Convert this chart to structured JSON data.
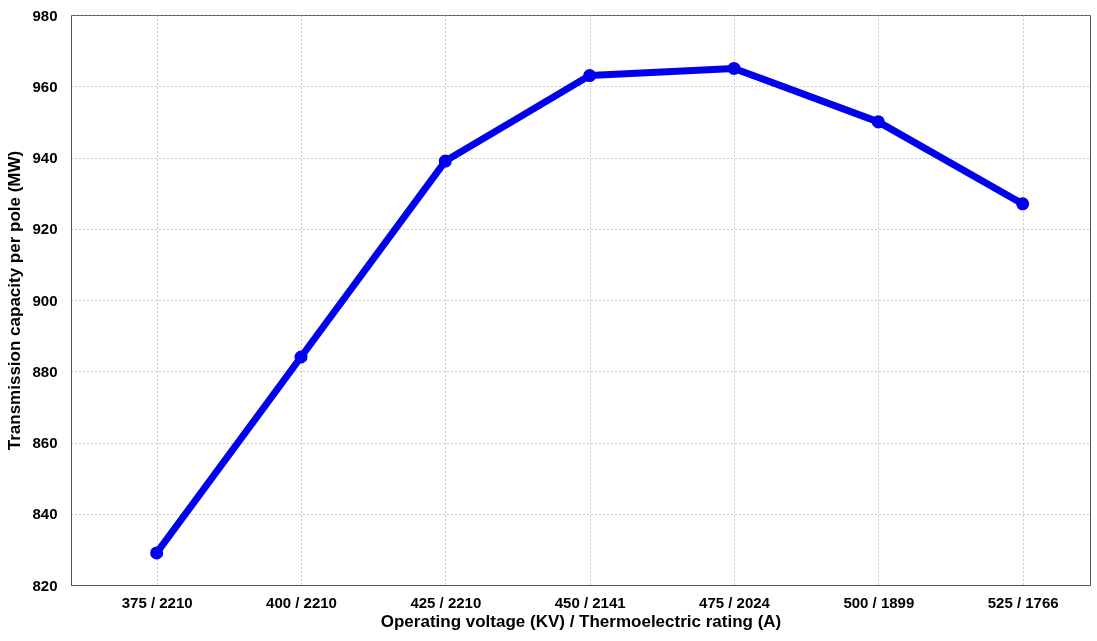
{
  "chart_data": {
    "type": "line",
    "xlabel": "Operating voltage (KV) / Thermoelectric rating (A)",
    "ylabel": "Transmission capacity per pole (MW)",
    "categories": [
      "375 / 2210",
      "400 / 2210",
      "425 / 2210",
      "450 / 2141",
      "475 / 2024",
      "500 / 1899",
      "525 / 1766"
    ],
    "series": [
      {
        "color": "#0000ee",
        "values": [
          829,
          884,
          939,
          963,
          965,
          950,
          927
        ]
      }
    ],
    "ylim": [
      820,
      980
    ],
    "yticks": [
      820,
      840,
      860,
      880,
      900,
      920,
      940,
      960,
      980
    ],
    "grid": true,
    "marker": "circle",
    "line_style": "solid"
  }
}
